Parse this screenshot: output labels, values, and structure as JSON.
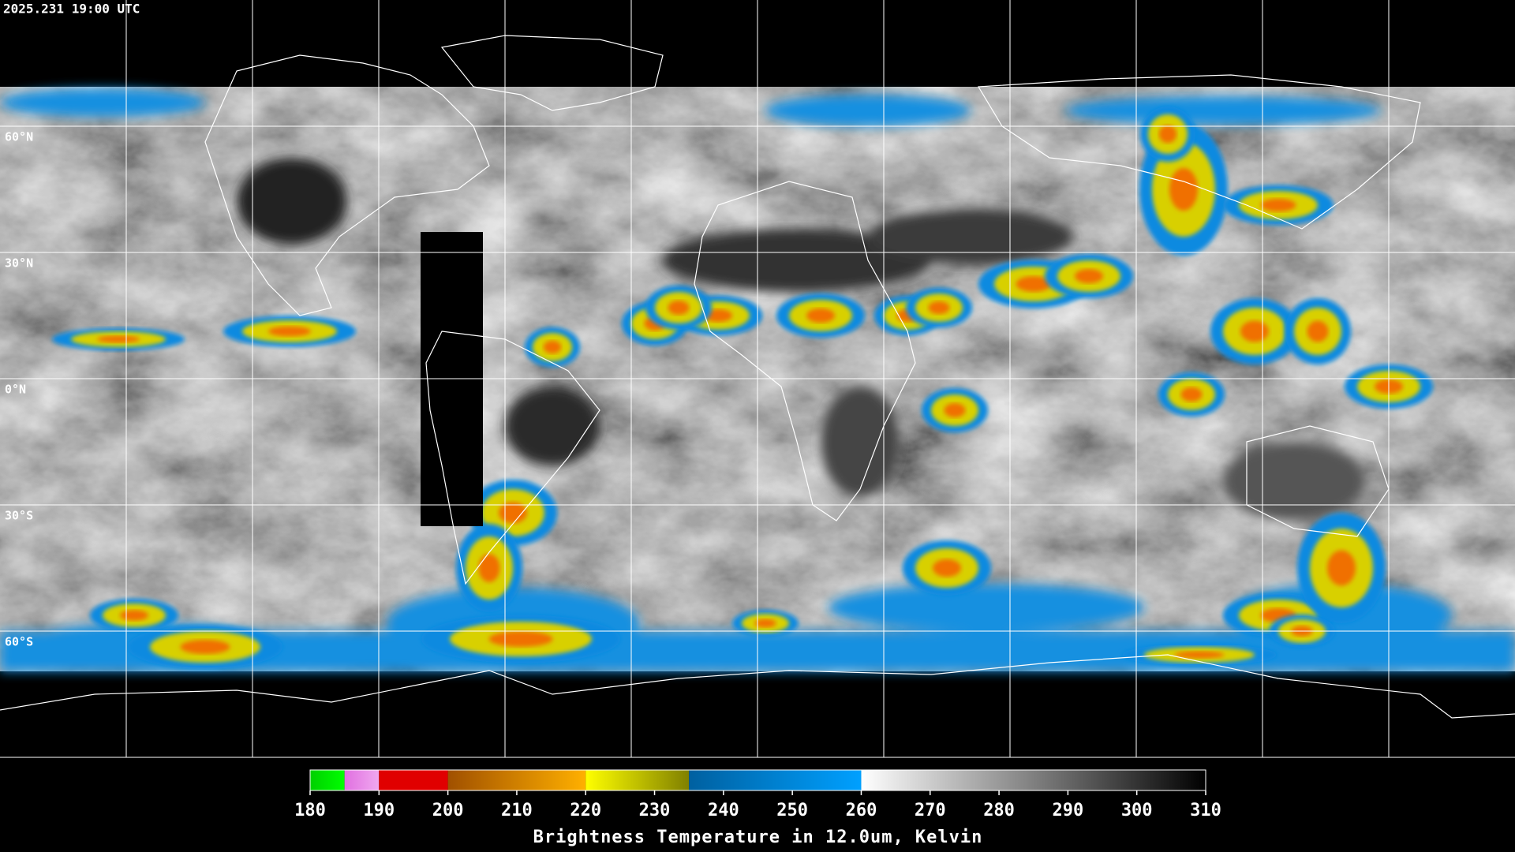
{
  "header": {
    "timestamp": "2025.231 19:00 UTC"
  },
  "map": {
    "xlim": [
      -180,
      180
    ],
    "ylim": [
      -90,
      90
    ],
    "lon_grid": [
      -150,
      -120,
      -90,
      -60,
      -30,
      0,
      30,
      60,
      90,
      120,
      150
    ],
    "lat_grid": [
      {
        "value": 60,
        "label": "60°N"
      },
      {
        "value": 30,
        "label": "30°N"
      },
      {
        "value": 0,
        "label": "0°N"
      },
      {
        "value": -30,
        "label": "30°S"
      },
      {
        "value": -60,
        "label": "60°S"
      }
    ],
    "grid_color": "#ffffff"
  },
  "colorbar": {
    "lim": [
      180,
      310
    ],
    "ticks": [
      180,
      190,
      200,
      210,
      220,
      230,
      240,
      250,
      260,
      270,
      280,
      290,
      300,
      310
    ],
    "label": "Brightness Temperature in 12.0um, Kelvin",
    "segments": [
      {
        "from": 180,
        "to": 185,
        "colors": [
          "#00d000",
          "#00ff00"
        ]
      },
      {
        "from": 185,
        "to": 190,
        "colors": [
          "#e070e0",
          "#f0a8f0"
        ]
      },
      {
        "from": 190,
        "to": 200,
        "colors": [
          "#e00000",
          "#e00000"
        ]
      },
      {
        "from": 200,
        "to": 220,
        "colors": [
          "#a05000",
          "#ffb000"
        ]
      },
      {
        "from": 220,
        "to": 235,
        "colors": [
          "#ffff00",
          "#808000"
        ]
      },
      {
        "from": 235,
        "to": 260,
        "colors": [
          "#0060a0",
          "#00a0ff"
        ]
      },
      {
        "from": 260,
        "to": 310,
        "colors": [
          "#ffffff",
          "#000000"
        ]
      }
    ]
  }
}
